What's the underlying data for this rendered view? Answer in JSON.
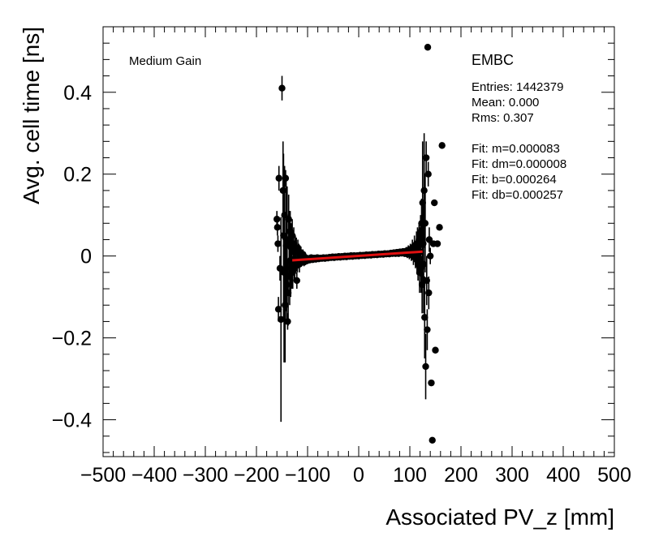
{
  "chart_data": {
    "type": "scatter",
    "title": "",
    "xlabel": "Associated PV_z [mm]",
    "ylabel": "Avg. cell time [ns]",
    "xlim": [
      -500,
      500
    ],
    "ylim": [
      -0.49,
      0.56
    ],
    "xticks": [
      -500,
      -400,
      -300,
      -200,
      -100,
      0,
      100,
      200,
      300,
      400,
      500
    ],
    "xtick_labels": [
      "−500",
      "−400",
      "−300",
      "−200",
      "−100",
      "0",
      "100",
      "200",
      "300",
      "400",
      "500"
    ],
    "yticks": [
      -0.4,
      -0.2,
      0,
      0.2,
      0.4
    ],
    "ytick_labels": [
      "−0.4",
      "−0.2",
      "0",
      "0.2",
      "0.4"
    ],
    "grid": false,
    "annotations": {
      "gain": "Medium Gain",
      "region": "EMBC",
      "stats": [
        "Entries: 1442379",
        "Mean: 0.000",
        "Rms: 0.307",
        "",
        "Fit: m=0.000083",
        "Fit: dm=0.000008",
        "Fit: b=0.000264",
        "Fit: db=0.000257"
      ]
    },
    "fit_line": {
      "color": "#e01010",
      "x": [
        -130,
        125
      ],
      "y": [
        -0.0105,
        0.0107
      ]
    },
    "series": [
      {
        "marker_color": "#000000",
        "points": [
          {
            "x": -160,
            "y": 0.09,
            "err": 0.02
          },
          {
            "x": -159,
            "y": 0.07,
            "err": 0.02
          },
          {
            "x": -158,
            "y": 0.03,
            "err": 0.02
          },
          {
            "x": -157,
            "y": -0.13,
            "err": 0.03
          },
          {
            "x": -156,
            "y": 0.19,
            "err": 0.03
          },
          {
            "x": -154,
            "y": -0.03,
            "err": 0.03
          },
          {
            "x": -152,
            "y": -0.155,
            "err": 0.25
          },
          {
            "x": -150,
            "y": 0.41,
            "err": 0.03
          },
          {
            "x": -148,
            "y": 0.16,
            "err": 0.12
          },
          {
            "x": -147,
            "y": 0.05,
            "err": 0.2
          },
          {
            "x": -146,
            "y": -0.04,
            "err": 0.22
          },
          {
            "x": -145,
            "y": 0.1,
            "err": 0.12
          },
          {
            "x": -144,
            "y": -0.12,
            "err": 0.14
          },
          {
            "x": -143,
            "y": 0.19,
            "err": 0.02
          },
          {
            "x": -142,
            "y": 0.025,
            "err": 0.16
          },
          {
            "x": -141,
            "y": -0.07,
            "err": 0.09
          },
          {
            "x": -140,
            "y": 0.04,
            "err": 0.13
          },
          {
            "x": -139,
            "y": -0.16,
            "err": 0.02
          },
          {
            "x": -138,
            "y": -0.09,
            "err": 0.08
          },
          {
            "x": -137,
            "y": 0.09,
            "err": 0.06
          },
          {
            "x": -136,
            "y": 0.03,
            "err": 0.08
          },
          {
            "x": -135,
            "y": -0.05,
            "err": 0.07
          },
          {
            "x": -134,
            "y": 0.06,
            "err": 0.05
          },
          {
            "x": -133,
            "y": -0.01,
            "err": 0.09
          },
          {
            "x": -132,
            "y": 0.02,
            "err": 0.06
          },
          {
            "x": -131,
            "y": -0.03,
            "err": 0.05
          },
          {
            "x": -130,
            "y": 0.05,
            "err": 0.04
          },
          {
            "x": -129,
            "y": -0.04,
            "err": 0.04
          },
          {
            "x": -128,
            "y": 0.01,
            "err": 0.05
          },
          {
            "x": -127,
            "y": 0.03,
            "err": 0.04
          },
          {
            "x": -126,
            "y": -0.02,
            "err": 0.04
          },
          {
            "x": -125,
            "y": -0.03,
            "err": 0.03
          },
          {
            "x": -124,
            "y": 0.02,
            "err": 0.03
          },
          {
            "x": -123,
            "y": -0.01,
            "err": 0.03
          },
          {
            "x": -122,
            "y": 0.015,
            "err": 0.03
          },
          {
            "x": -121,
            "y": -0.06,
            "err": 0.02
          },
          {
            "x": -120,
            "y": -0.015,
            "err": 0.025
          },
          {
            "x": -119,
            "y": 0.02,
            "err": 0.02
          },
          {
            "x": -118,
            "y": -0.01,
            "err": 0.02
          },
          {
            "x": -117,
            "y": 0.01,
            "err": 0.02
          },
          {
            "x": -116,
            "y": -0.02,
            "err": 0.02
          },
          {
            "x": -115,
            "y": -0.005,
            "err": 0.015
          },
          {
            "x": -113,
            "y": 0.008,
            "err": 0.015
          },
          {
            "x": -111,
            "y": -0.012,
            "err": 0.012
          },
          {
            "x": -109,
            "y": 0.004,
            "err": 0.012
          },
          {
            "x": -107,
            "y": -0.015,
            "err": 0.01
          },
          {
            "x": -105,
            "y": -0.003,
            "err": 0.01
          },
          {
            "x": -102,
            "y": -0.012,
            "err": 0.008
          },
          {
            "x": -99,
            "y": -0.006,
            "err": 0.008
          },
          {
            "x": -96,
            "y": -0.01,
            "err": 0.007
          },
          {
            "x": -93,
            "y": -0.004,
            "err": 0.006
          },
          {
            "x": -90,
            "y": -0.009,
            "err": 0.006
          },
          {
            "x": -87,
            "y": -0.005,
            "err": 0.005
          },
          {
            "x": -84,
            "y": -0.008,
            "err": 0.005
          },
          {
            "x": -81,
            "y": -0.004,
            "err": 0.004
          },
          {
            "x": -78,
            "y": -0.007,
            "err": 0.004
          },
          {
            "x": -75,
            "y": -0.005,
            "err": 0.004
          },
          {
            "x": -72,
            "y": -0.006,
            "err": 0.003
          },
          {
            "x": -69,
            "y": -0.004,
            "err": 0.003
          },
          {
            "x": -66,
            "y": -0.006,
            "err": 0.003
          },
          {
            "x": -63,
            "y": -0.004,
            "err": 0.003
          },
          {
            "x": -60,
            "y": -0.005,
            "err": 0.003
          },
          {
            "x": -57,
            "y": -0.003,
            "err": 0.003
          },
          {
            "x": -54,
            "y": -0.004,
            "err": 0.003
          },
          {
            "x": -51,
            "y": -0.002,
            "err": 0.003
          },
          {
            "x": -48,
            "y": -0.004,
            "err": 0.003
          },
          {
            "x": -45,
            "y": -0.002,
            "err": 0.003
          },
          {
            "x": -42,
            "y": -0.003,
            "err": 0.003
          },
          {
            "x": -39,
            "y": -0.001,
            "err": 0.003
          },
          {
            "x": -36,
            "y": -0.003,
            "err": 0.003
          },
          {
            "x": -33,
            "y": -0.001,
            "err": 0.003
          },
          {
            "x": -30,
            "y": -0.002,
            "err": 0.003
          },
          {
            "x": -27,
            "y": 0.0,
            "err": 0.003
          },
          {
            "x": -24,
            "y": -0.002,
            "err": 0.003
          },
          {
            "x": -21,
            "y": 0.0,
            "err": 0.003
          },
          {
            "x": -18,
            "y": -0.001,
            "err": 0.003
          },
          {
            "x": -15,
            "y": 0.001,
            "err": 0.003
          },
          {
            "x": -12,
            "y": -0.001,
            "err": 0.003
          },
          {
            "x": -9,
            "y": 0.001,
            "err": 0.003
          },
          {
            "x": -6,
            "y": 0.0,
            "err": 0.003
          },
          {
            "x": -3,
            "y": 0.001,
            "err": 0.003
          },
          {
            "x": 0,
            "y": 0.0,
            "err": 0.003
          },
          {
            "x": 3,
            "y": 0.002,
            "err": 0.003
          },
          {
            "x": 6,
            "y": 0.001,
            "err": 0.003
          },
          {
            "x": 9,
            "y": 0.002,
            "err": 0.003
          },
          {
            "x": 12,
            "y": 0.001,
            "err": 0.003
          },
          {
            "x": 15,
            "y": 0.003,
            "err": 0.003
          },
          {
            "x": 18,
            "y": 0.002,
            "err": 0.003
          },
          {
            "x": 21,
            "y": 0.003,
            "err": 0.003
          },
          {
            "x": 24,
            "y": 0.002,
            "err": 0.003
          },
          {
            "x": 27,
            "y": 0.004,
            "err": 0.003
          },
          {
            "x": 30,
            "y": 0.003,
            "err": 0.003
          },
          {
            "x": 33,
            "y": 0.004,
            "err": 0.003
          },
          {
            "x": 36,
            "y": 0.003,
            "err": 0.003
          },
          {
            "x": 39,
            "y": 0.005,
            "err": 0.003
          },
          {
            "x": 42,
            "y": 0.004,
            "err": 0.003
          },
          {
            "x": 45,
            "y": 0.005,
            "err": 0.003
          },
          {
            "x": 48,
            "y": 0.004,
            "err": 0.003
          },
          {
            "x": 51,
            "y": 0.006,
            "err": 0.003
          },
          {
            "x": 54,
            "y": 0.005,
            "err": 0.003
          },
          {
            "x": 57,
            "y": 0.006,
            "err": 0.004
          },
          {
            "x": 60,
            "y": 0.005,
            "err": 0.004
          },
          {
            "x": 63,
            "y": 0.007,
            "err": 0.004
          },
          {
            "x": 66,
            "y": 0.006,
            "err": 0.004
          },
          {
            "x": 69,
            "y": 0.008,
            "err": 0.005
          },
          {
            "x": 72,
            "y": 0.006,
            "err": 0.005
          },
          {
            "x": 75,
            "y": 0.009,
            "err": 0.005
          },
          {
            "x": 78,
            "y": 0.006,
            "err": 0.006
          },
          {
            "x": 81,
            "y": 0.01,
            "err": 0.006
          },
          {
            "x": 84,
            "y": 0.007,
            "err": 0.007
          },
          {
            "x": 87,
            "y": 0.011,
            "err": 0.008
          },
          {
            "x": 90,
            "y": 0.006,
            "err": 0.008
          },
          {
            "x": 93,
            "y": 0.012,
            "err": 0.01
          },
          {
            "x": 95,
            "y": 0.005,
            "err": 0.01
          },
          {
            "x": 97,
            "y": 0.014,
            "err": 0.012
          },
          {
            "x": 99,
            "y": 0.004,
            "err": 0.012
          },
          {
            "x": 101,
            "y": 0.016,
            "err": 0.014
          },
          {
            "x": 103,
            "y": 0.003,
            "err": 0.015
          },
          {
            "x": 105,
            "y": 0.02,
            "err": 0.02
          },
          {
            "x": 107,
            "y": -0.002,
            "err": 0.02
          },
          {
            "x": 109,
            "y": 0.025,
            "err": 0.025
          },
          {
            "x": 111,
            "y": 0.0,
            "err": 0.03
          },
          {
            "x": 113,
            "y": 0.03,
            "err": 0.03
          },
          {
            "x": 114,
            "y": -0.01,
            "err": 0.035
          },
          {
            "x": 115,
            "y": 0.03,
            "err": 0.04
          },
          {
            "x": 116,
            "y": -0.02,
            "err": 0.04
          },
          {
            "x": 117,
            "y": 0.015,
            "err": 0.05
          },
          {
            "x": 118,
            "y": 0.04,
            "err": 0.04
          },
          {
            "x": 119,
            "y": -0.04,
            "err": 0.05
          },
          {
            "x": 120,
            "y": 0.01,
            "err": 0.06
          },
          {
            "x": 121,
            "y": 0.05,
            "err": 0.05
          },
          {
            "x": 122,
            "y": -0.03,
            "err": 0.06
          },
          {
            "x": 123,
            "y": 0.08,
            "err": 0.06
          },
          {
            "x": 124,
            "y": -0.07,
            "err": 0.07
          },
          {
            "x": 125,
            "y": 0.13,
            "err": 0.15
          },
          {
            "x": 126,
            "y": 0.03,
            "err": 0.1
          },
          {
            "x": 127,
            "y": -0.02,
            "err": 0.12
          },
          {
            "x": 128,
            "y": 0.16,
            "err": 0.14
          },
          {
            "x": 129,
            "y": -0.15,
            "err": 0.1
          },
          {
            "x": 130,
            "y": 0.08,
            "err": 0.12
          },
          {
            "x": 131,
            "y": -0.27,
            "err": 0.08
          },
          {
            "x": 132,
            "y": 0.24,
            "err": 0.04
          },
          {
            "x": 133,
            "y": -0.06,
            "err": 0.06
          },
          {
            "x": 134,
            "y": -0.18,
            "err": 0.05
          },
          {
            "x": 135,
            "y": 0.51,
            "err": 0.0
          },
          {
            "x": 136,
            "y": 0.2,
            "err": 0.03
          },
          {
            "x": 137,
            "y": -0.09,
            "err": 0.04
          },
          {
            "x": 138,
            "y": 0.04,
            "err": 0.03
          },
          {
            "x": 140,
            "y": 0.0,
            "err": 0.02
          },
          {
            "x": 142,
            "y": -0.31,
            "err": 0.0
          },
          {
            "x": 144,
            "y": -0.45,
            "err": 0.0
          },
          {
            "x": 146,
            "y": 0.03,
            "err": 0.0
          },
          {
            "x": 148,
            "y": 0.13,
            "err": 0.0
          },
          {
            "x": 150,
            "y": -0.23,
            "err": 0.0
          },
          {
            "x": 154,
            "y": 0.03,
            "err": 0.0
          },
          {
            "x": 158,
            "y": 0.07,
            "err": 0.0
          },
          {
            "x": 163,
            "y": 0.27,
            "err": 0.0
          }
        ]
      }
    ]
  }
}
